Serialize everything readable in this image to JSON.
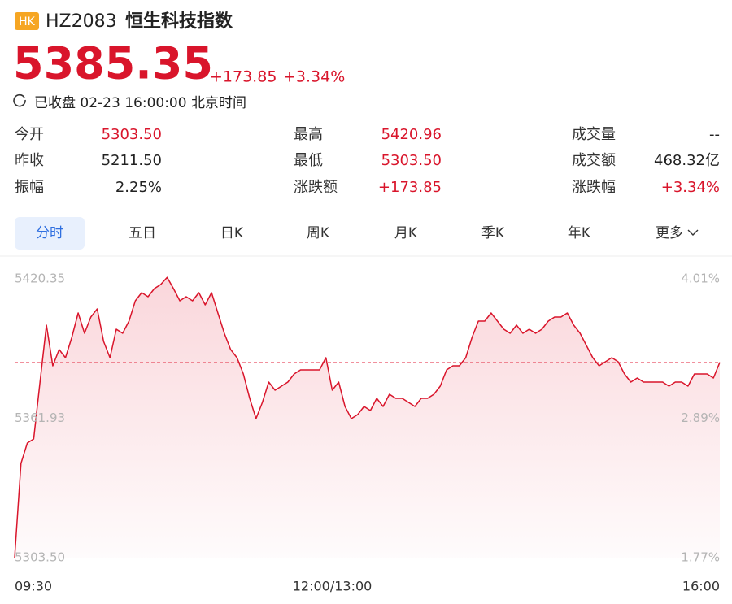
{
  "header": {
    "badge": "HK",
    "code": "HZ2083",
    "name": "恒生科技指数"
  },
  "quote": {
    "price": "5385.35",
    "change": "+173.85",
    "change_pct": "+3.34%",
    "status": "已收盘 02-23 16:00:00 北京时间"
  },
  "stats": [
    [
      {
        "label": "今开",
        "value": "5303.50"
      },
      {
        "label": "最高",
        "value": "5420.96"
      },
      {
        "label": "成交量",
        "value": "--"
      }
    ],
    [
      {
        "label": "昨收",
        "value": "5211.50"
      },
      {
        "label": "最低",
        "value": "5303.50"
      },
      {
        "label": "成交额",
        "value": "468.32亿"
      }
    ],
    [
      {
        "label": "振幅",
        "value": "2.25%"
      },
      {
        "label": "涨跌额",
        "value": "+173.85"
      },
      {
        "label": "涨跌幅",
        "value": "+3.34%"
      }
    ]
  ],
  "tabs": [
    "分时",
    "五日",
    "日K",
    "周K",
    "月K",
    "季K",
    "年K",
    "更多"
  ],
  "chart_data": {
    "type": "line",
    "color": "#d9152b",
    "categories": [
      "09:30",
      null,
      null,
      null,
      null,
      null,
      null,
      null,
      null,
      null,
      null,
      null,
      null,
      null,
      null,
      null,
      null,
      null,
      null,
      null,
      null,
      null,
      null,
      null,
      null,
      null,
      null,
      null,
      null,
      null,
      null,
      null,
      null,
      null,
      null,
      null,
      null,
      null,
      null,
      null,
      null,
      null,
      null,
      null,
      null,
      null,
      null,
      null,
      null,
      null,
      "12:00/13:00",
      null,
      null,
      null,
      null,
      null,
      null,
      null,
      null,
      null,
      null,
      null,
      null,
      null,
      null,
      null,
      null,
      null,
      null,
      null,
      null,
      null,
      null,
      null,
      null,
      null,
      null,
      null,
      null,
      null,
      null,
      null,
      null,
      null,
      null,
      null,
      null,
      null,
      null,
      null,
      null,
      null,
      null,
      null,
      null,
      null,
      null,
      null,
      null,
      null,
      null,
      null,
      null,
      null,
      null,
      null,
      null,
      null,
      null,
      null,
      null,
      "16:00"
    ],
    "values": [
      5303.5,
      5343.02,
      5351.53,
      5353.24,
      5377.08,
      5400.93,
      5383.9,
      5390.71,
      5387.31,
      5395.82,
      5406.04,
      5397.52,
      5404.34,
      5407.75,
      5394.12,
      5387.31,
      5399.23,
      5397.52,
      5402.64,
      5411.15,
      5414.56,
      5412.86,
      5416.26,
      5417.97,
      5420.96,
      5416.26,
      5411.15,
      5412.86,
      5411.15,
      5414.56,
      5409.45,
      5414.56,
      5406.04,
      5397.52,
      5390.71,
      5387.31,
      5380.49,
      5370.27,
      5361.75,
      5368.57,
      5377.08,
      5373.68,
      5375.38,
      5377.08,
      5380.49,
      5382.19,
      5382.19,
      5382.19,
      5382.19,
      5387.31,
      5373.68,
      5377.08,
      5366.86,
      5361.75,
      5363.46,
      5366.86,
      5365.16,
      5370.27,
      5366.86,
      5371.97,
      5370.27,
      5370.27,
      5368.57,
      5366.86,
      5370.27,
      5370.27,
      5371.97,
      5375.38,
      5382.19,
      5383.9,
      5383.9,
      5387.31,
      5395.82,
      5402.64,
      5402.64,
      5406.04,
      5402.64,
      5399.23,
      5397.52,
      5400.93,
      5397.52,
      5399.23,
      5397.52,
      5399.23,
      5402.64,
      5404.34,
      5404.34,
      5406.04,
      5400.93,
      5397.52,
      5392.42,
      5387.31,
      5383.9,
      5385.6,
      5387.31,
      5385.6,
      5380.49,
      5377.08,
      5378.79,
      5377.08,
      5377.08,
      5377.08,
      5377.08,
      5375.38,
      5377.08,
      5377.08,
      5375.38,
      5380.49,
      5380.49,
      5380.49,
      5378.79,
      5385.35
    ],
    "ylim": [
      5303.5,
      5420.35
    ],
    "yticks": [
      {
        "value": 5303.5,
        "label": "5303.50"
      },
      5361.93,
      5420.35
    ],
    "y2lim": [
      1.77,
      4.01
    ],
    "y2ticks": [
      {
        "value": 1.77,
        "label": "1.77%"
      },
      {
        "value": 2.89,
        "label": "2.89%"
      },
      {
        "value": 4.01,
        "label": "4.01%"
      }
    ]
  }
}
